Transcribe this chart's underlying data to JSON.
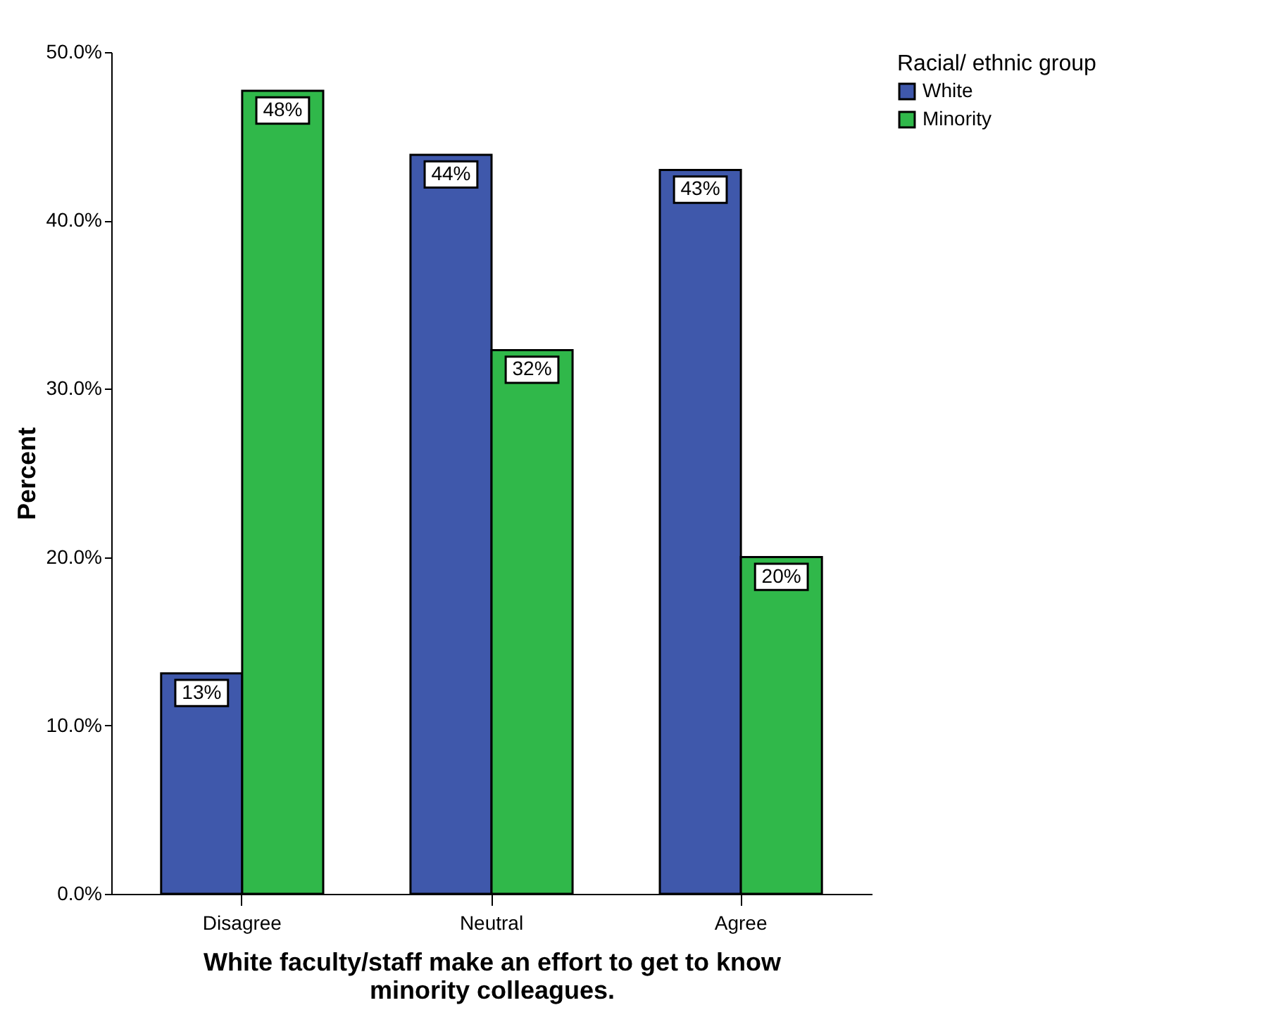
{
  "chart_data": {
    "type": "bar",
    "xlabel": "White faculty/staff make an effort to get to know minority colleagues.",
    "ylabel": "Percent",
    "legend_title": "Racial/ ethnic group",
    "legend": "top right",
    "grid": false,
    "categories": [
      "Disagree",
      "Neutral",
      "Agree"
    ],
    "series": [
      {
        "name": "White",
        "color": "#3f58ab",
        "values": [
          13.1,
          43.9,
          43.0
        ],
        "value_labels": [
          "13%",
          "44%",
          "43%"
        ]
      },
      {
        "name": "Minority",
        "color": "#30b84a",
        "values": [
          47.7,
          32.3,
          20.0
        ],
        "value_labels": [
          "48%",
          "32%",
          "20%"
        ]
      }
    ],
    "ylim": [
      0,
      50
    ],
    "yticks": [
      {
        "value": 0,
        "label": "0.0%"
      },
      {
        "value": 10,
        "label": "10.0%"
      },
      {
        "value": 20,
        "label": "20.0%"
      },
      {
        "value": 30,
        "label": "30.0%"
      },
      {
        "value": 40,
        "label": "40.0%"
      },
      {
        "value": 50,
        "label": "50.0%"
      }
    ]
  }
}
